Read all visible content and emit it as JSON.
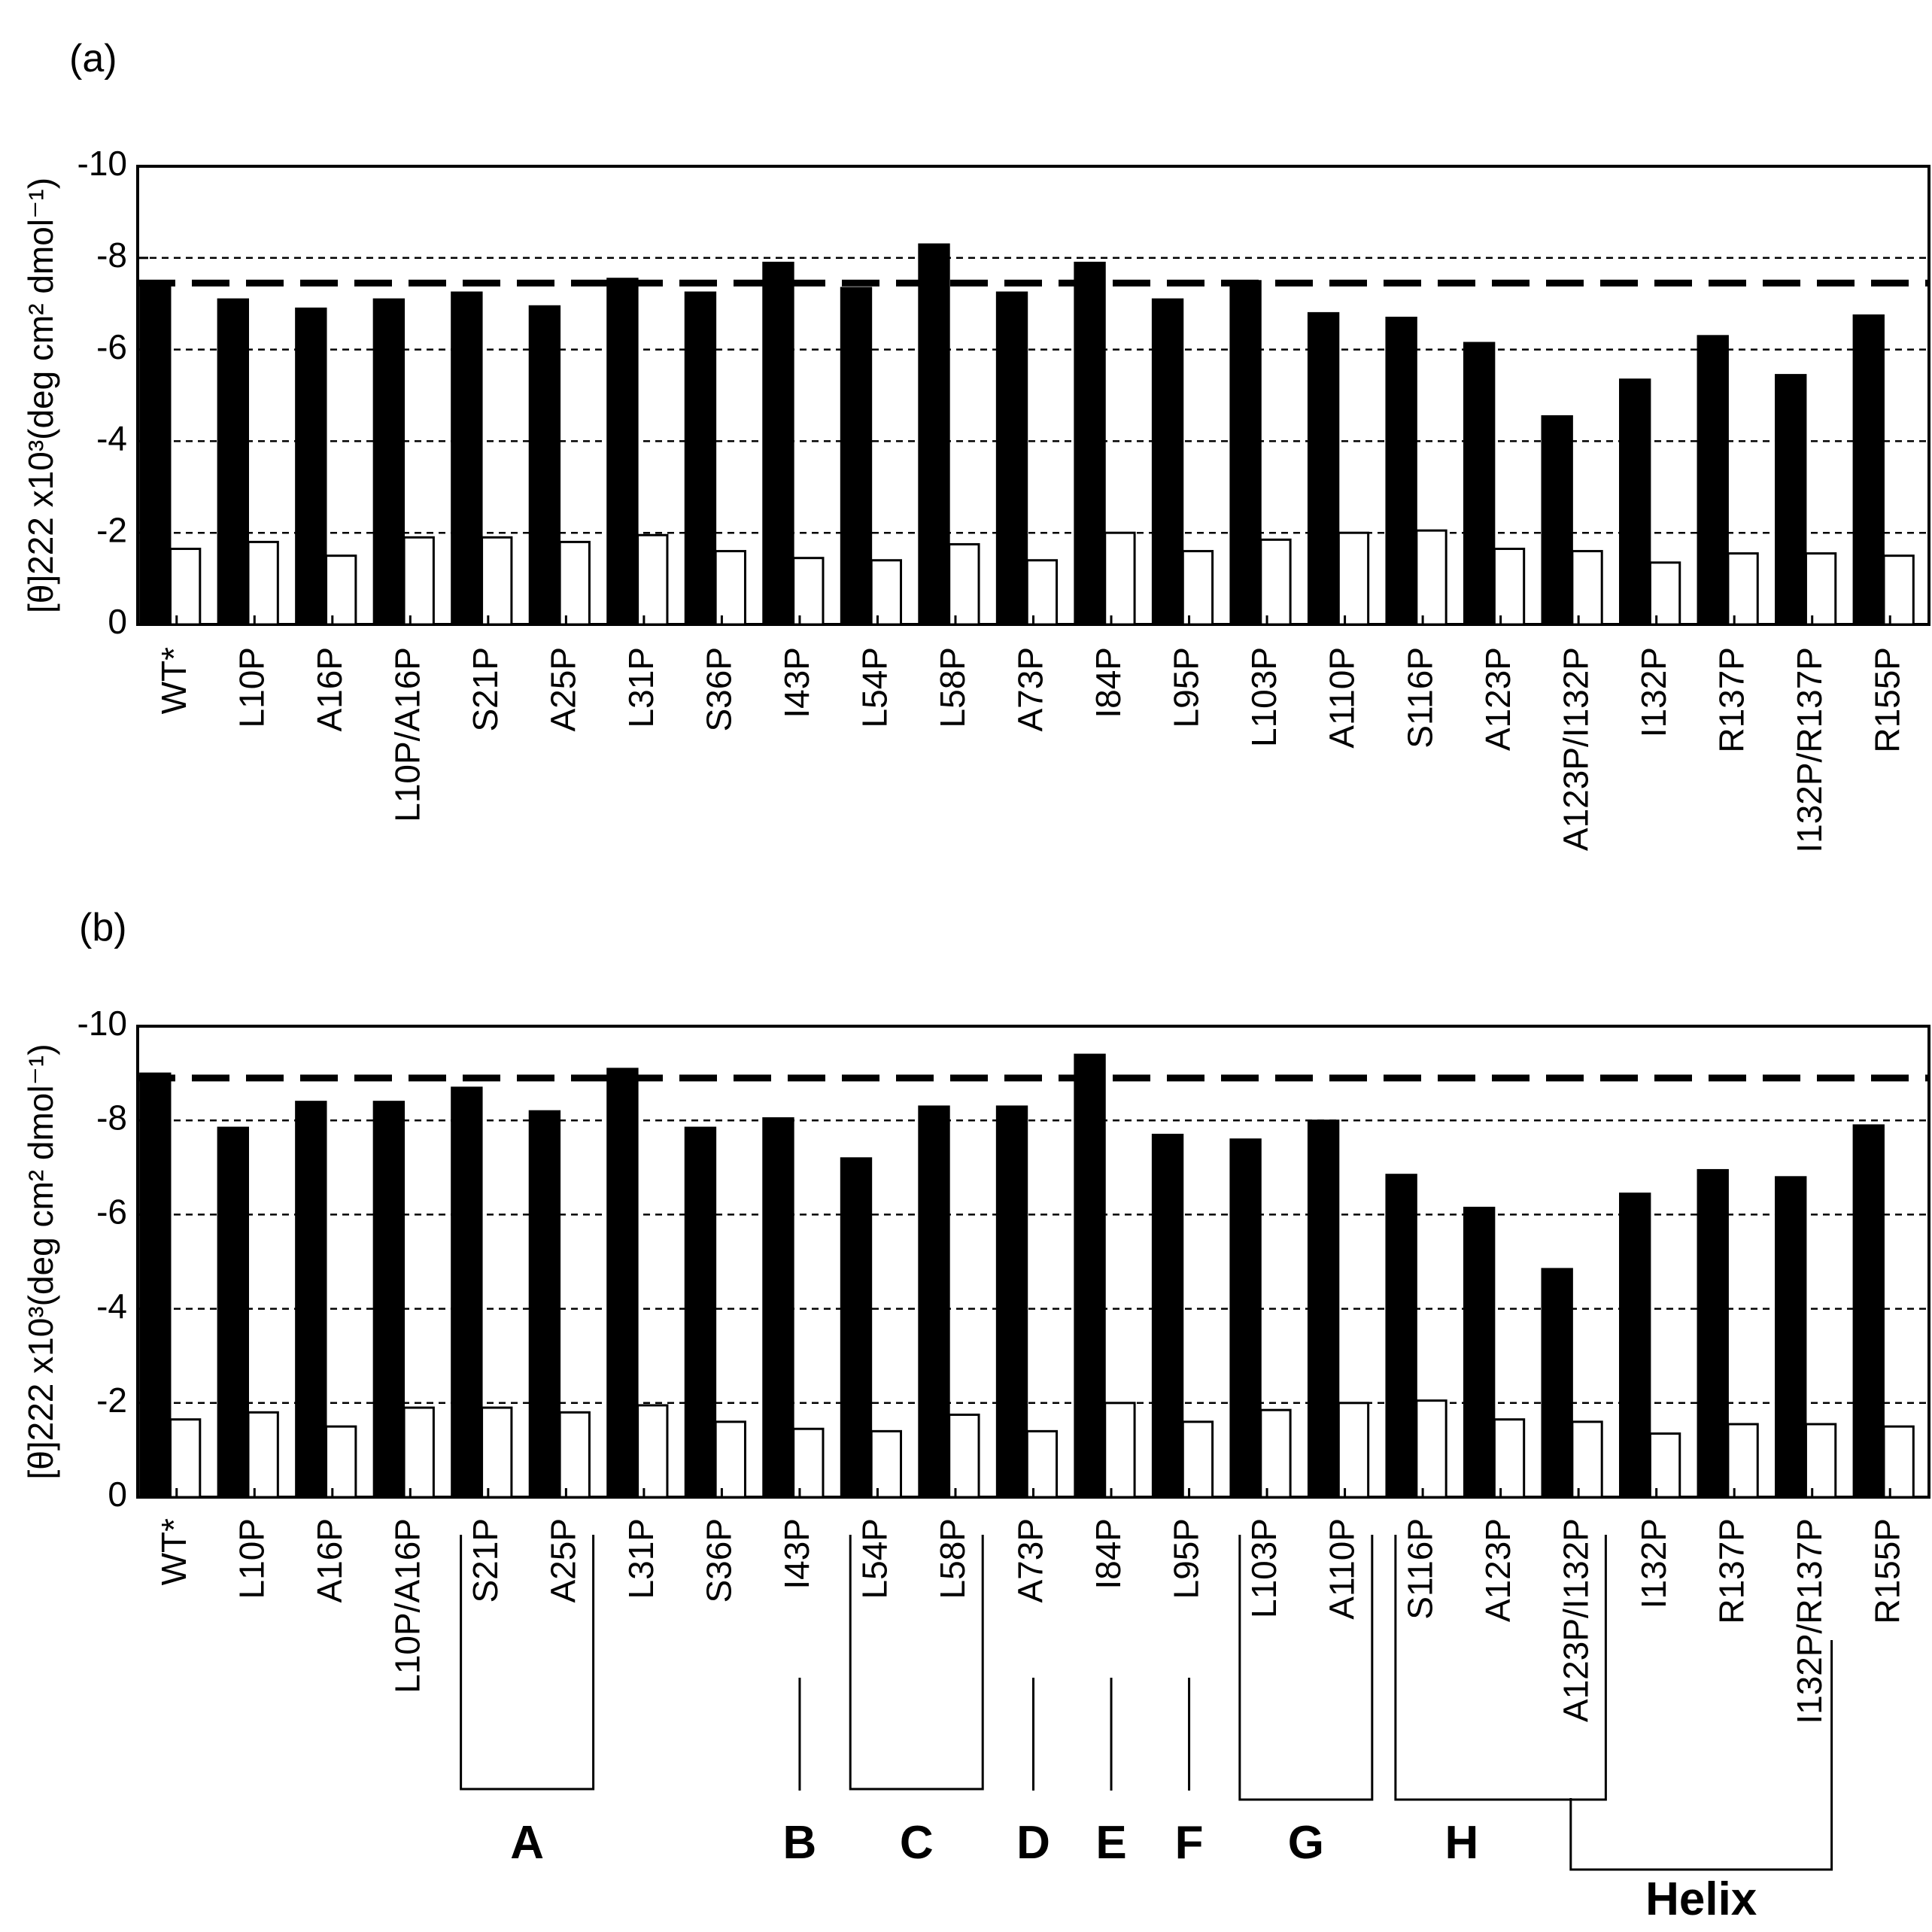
{
  "chart_data": [
    {
      "panel_label": "(a)",
      "type": "bar",
      "ylabel": "[θ]222 x10³(deg cm² dmol⁻¹)",
      "ylim": [
        0,
        -10
      ],
      "yticks": [
        "-10",
        "-8",
        "-6",
        "-4",
        "-2",
        "0"
      ],
      "categories": [
        "WT*",
        "L10P",
        "A16P",
        "L10P/A16P",
        "S21P",
        "A25P",
        "L31P",
        "S36P",
        "I43P",
        "L54P",
        "L58P",
        "A73P",
        "I84P",
        "L95P",
        "L103P",
        "A110P",
        "S116P",
        "A123P",
        "A123P/I132P",
        "I132P",
        "R137P",
        "I132P/R137P",
        "R155P"
      ],
      "series": [
        {
          "fill": "#000000",
          "values": [
            -7.5,
            -7.1,
            -6.9,
            -7.1,
            -7.25,
            -6.95,
            -7.55,
            -7.25,
            -7.9,
            -7.35,
            -8.3,
            -7.25,
            -7.9,
            -7.1,
            -7.5,
            -6.8,
            -6.7,
            -6.15,
            -4.55,
            -5.35,
            -6.3,
            -5.45,
            -6.75
          ]
        },
        {
          "fill": "#ffffff",
          "values": [
            -1.65,
            -1.8,
            -1.5,
            -1.9,
            -1.9,
            -1.8,
            -1.95,
            -1.6,
            -1.45,
            -1.4,
            -1.75,
            -1.4,
            -2.0,
            -1.6,
            -1.85,
            -2.0,
            -2.05,
            -1.65,
            -1.6,
            -1.35,
            -1.55,
            -1.55,
            -1.5
          ]
        }
      ],
      "reference_line": -7.45,
      "grid_y": [
        -2,
        -4,
        -6,
        -8
      ]
    },
    {
      "panel_label": "(b)",
      "type": "bar",
      "ylabel": "[θ]222 x10³(deg cm² dmol⁻¹)",
      "ylim": [
        0,
        -10
      ],
      "yticks": [
        "-10",
        "-8",
        "-6",
        "-4",
        "-2",
        "0"
      ],
      "categories": [
        "WT*",
        "L10P",
        "A16P",
        "L10P/A16P",
        "S21P",
        "A25P",
        "L31P",
        "S36P",
        "I43P",
        "L54P",
        "L58P",
        "A73P",
        "I84P",
        "L95P",
        "L103P",
        "A110P",
        "S116P",
        "A123P",
        "A123P/I132P",
        "I132P",
        "R137P",
        "I132P/R137P",
        "R155P"
      ],
      "series": [
        {
          "fill": "#000000",
          "values": [
            -9.0,
            -7.85,
            -8.4,
            -8.4,
            -8.7,
            -8.2,
            -9.1,
            -7.85,
            -8.05,
            -7.2,
            -8.3,
            -8.3,
            -9.4,
            -7.7,
            -7.6,
            -8.0,
            -6.85,
            -6.15,
            -4.85,
            -6.45,
            -6.95,
            -6.8,
            -7.9
          ]
        },
        {
          "fill": "#ffffff",
          "values": [
            -1.65,
            -1.8,
            -1.5,
            -1.9,
            -1.9,
            -1.8,
            -1.95,
            -1.6,
            -1.45,
            -1.4,
            -1.75,
            -1.4,
            -2.0,
            -1.6,
            -1.85,
            -2.0,
            -2.05,
            -1.65,
            -1.6,
            -1.35,
            -1.55,
            -1.55,
            -1.5
          ]
        }
      ],
      "reference_line": -8.9,
      "grid_y": [
        -2,
        -4,
        -6,
        -8
      ],
      "groups": [
        {
          "label": "A",
          "members": [
            4,
            5
          ]
        },
        {
          "label": "B",
          "members": [
            8
          ]
        },
        {
          "label": "C",
          "members": [
            9,
            10
          ]
        },
        {
          "label": "D",
          "members": [
            11
          ]
        },
        {
          "label": "E",
          "members": [
            12
          ]
        },
        {
          "label": "F",
          "members": [
            13
          ]
        },
        {
          "label": "G",
          "members": [
            14,
            15
          ]
        },
        {
          "label": "H",
          "members": [
            16,
            17,
            18
          ]
        },
        {
          "label": "Helix",
          "members": [
            18,
            19,
            20,
            21
          ]
        }
      ]
    }
  ]
}
